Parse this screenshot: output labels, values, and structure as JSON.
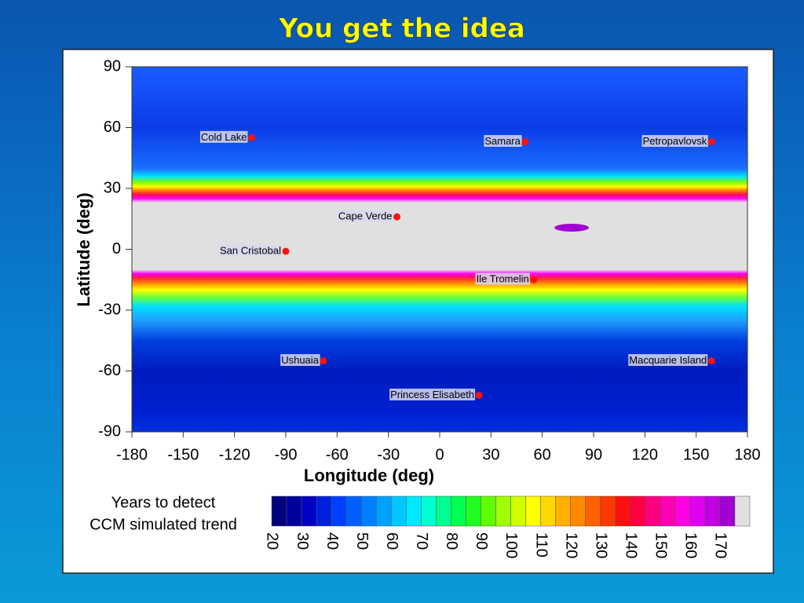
{
  "chart_data": {
    "type": "scatter",
    "title": "You get the idea",
    "xlabel": "Longitude (deg)",
    "ylabel": "Latitude (deg)",
    "xlim": [
      -180,
      180
    ],
    "ylim": [
      -90,
      90
    ],
    "xticks": [
      -180,
      -150,
      -120,
      -90,
      -60,
      -30,
      0,
      30,
      60,
      90,
      120,
      150,
      180
    ],
    "yticks": [
      -90,
      -60,
      -30,
      0,
      30,
      60,
      90
    ],
    "point_color": "#ff1010",
    "point_labels": [
      "Cold Lake",
      "Samara",
      "Petropavlovsk",
      "Cape Verde",
      "San Cristobal",
      "Ile Tromelin",
      "Ushuaia",
      "Macquarie Island",
      "Princess Elisabeth"
    ],
    "x": [
      -110,
      50,
      159,
      -25,
      -90,
      55,
      -68,
      159,
      23
    ],
    "y": [
      55,
      53,
      53,
      16,
      -1,
      -15,
      -55,
      -55,
      -72
    ],
    "colorbar": {
      "label": [
        "Years to detect",
        "CCM simulated trend"
      ],
      "lim": [
        20,
        180
      ],
      "ticks": [
        20,
        30,
        40,
        50,
        60,
        70,
        80,
        90,
        100,
        110,
        120,
        130,
        140,
        150,
        160,
        170
      ],
      "colors": [
        "#00007f",
        "#00009f",
        "#0000c8",
        "#0020e0",
        "#0040ff",
        "#0060ff",
        "#0080ff",
        "#00a0ff",
        "#00c8ff",
        "#00e8ff",
        "#00ffd0",
        "#00ff90",
        "#00ff50",
        "#20ff20",
        "#60ff00",
        "#a0ff00",
        "#d0ff00",
        "#ffff00",
        "#ffd800",
        "#ffb000",
        "#ff8800",
        "#ff6000",
        "#ff3800",
        "#ff1010",
        "#ff0040",
        "#ff0080",
        "#ff00b0",
        "#ff00e0",
        "#e000f0",
        "#c000e0",
        "#a000d0",
        "#e0e0e0"
      ]
    }
  }
}
